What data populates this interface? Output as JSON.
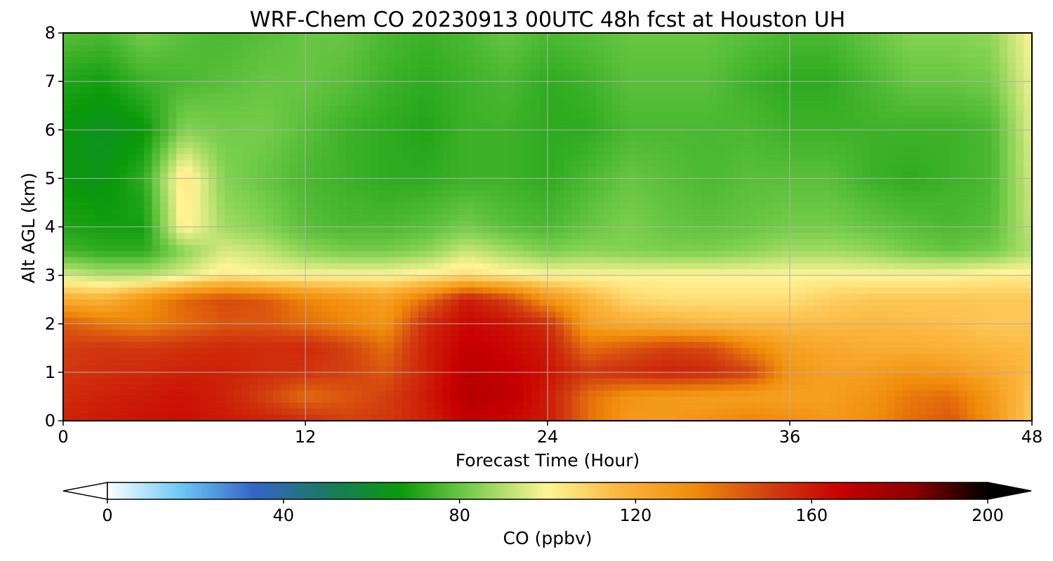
{
  "chart_data": {
    "type": "heatmap",
    "title": "WRF-Chem CO  20230913 00UTC 48h fcst at Houston UH",
    "xlabel": "Forecast Time (Hour)",
    "ylabel": "Alt AGL (km)",
    "xlim": [
      0,
      48
    ],
    "ylim": [
      0,
      8
    ],
    "x_ticks": [
      "0",
      "12",
      "24",
      "36",
      "48"
    ],
    "y_ticks": [
      "0",
      "1",
      "2",
      "3",
      "4",
      "5",
      "6",
      "7",
      "8"
    ],
    "grid": true,
    "colorbar": {
      "label": "CO  (ppbv)",
      "range": [
        0,
        200
      ],
      "ticks": [
        "0",
        "40",
        "80",
        "120",
        "160",
        "200"
      ],
      "extend": "both",
      "colors": [
        "#ffffff",
        "#6ac8f5",
        "#3563c8",
        "#1a7a60",
        "#0a9a0a",
        "#7ed050",
        "#fff596",
        "#fbb53c",
        "#f08c0a",
        "#d24010",
        "#c80000",
        "#8c0000",
        "#000000"
      ]
    },
    "hours": [
      0,
      2,
      4,
      6,
      8,
      10,
      12,
      14,
      16,
      18,
      20,
      22,
      24,
      26,
      28,
      30,
      32,
      34,
      36,
      38,
      40,
      42,
      44,
      46,
      48
    ],
    "altitudes_km": [
      0,
      0.5,
      1,
      1.5,
      2,
      2.5,
      3,
      3.5,
      4,
      5,
      6,
      7,
      8
    ],
    "values_ppbv": [
      [
        158,
        160,
        162,
        163,
        160,
        158,
        155,
        150,
        152,
        158,
        168,
        165,
        160,
        140,
        128,
        127,
        131,
        135,
        132,
        128,
        132,
        140,
        145,
        130,
        110
      ],
      [
        155,
        158,
        160,
        162,
        158,
        150,
        140,
        145,
        150,
        160,
        172,
        170,
        160,
        140,
        130,
        128,
        126,
        126,
        125,
        126,
        130,
        138,
        140,
        128,
        112
      ],
      [
        152,
        155,
        156,
        158,
        158,
        155,
        153,
        150,
        145,
        158,
        170,
        168,
        162,
        152,
        155,
        158,
        156,
        150,
        130,
        125,
        126,
        130,
        128,
        122,
        115
      ],
      [
        150,
        153,
        152,
        154,
        156,
        155,
        156,
        150,
        140,
        158,
        168,
        165,
        160,
        140,
        145,
        150,
        148,
        135,
        125,
        122,
        120,
        120,
        118,
        116,
        115
      ],
      [
        145,
        138,
        135,
        140,
        145,
        145,
        140,
        135,
        130,
        155,
        165,
        162,
        155,
        125,
        120,
        118,
        116,
        115,
        115,
        115,
        116,
        115,
        114,
        112,
        112
      ],
      [
        120,
        118,
        130,
        142,
        148,
        145,
        135,
        130,
        125,
        140,
        160,
        150,
        130,
        118,
        108,
        106,
        106,
        106,
        106,
        110,
        112,
        112,
        112,
        112,
        112
      ],
      [
        95,
        90,
        90,
        96,
        103,
        100,
        100,
        100,
        100,
        102,
        106,
        102,
        100,
        100,
        100,
        100,
        100,
        100,
        100,
        100,
        100,
        100,
        100,
        102,
        102
      ],
      [
        75,
        72,
        72,
        85,
        95,
        92,
        85,
        82,
        82,
        85,
        93,
        88,
        83,
        85,
        84,
        83,
        83,
        85,
        88,
        88,
        86,
        82,
        80,
        82,
        90
      ],
      [
        70,
        68,
        68,
        102,
        88,
        84,
        78,
        76,
        76,
        78,
        82,
        78,
        76,
        80,
        83,
        80,
        79,
        80,
        82,
        82,
        80,
        78,
        76,
        78,
        92
      ],
      [
        66,
        64,
        72,
        105,
        84,
        80,
        76,
        74,
        72,
        72,
        74,
        74,
        72,
        76,
        80,
        78,
        76,
        78,
        78,
        78,
        74,
        72,
        74,
        76,
        94
      ],
      [
        66,
        62,
        66,
        84,
        82,
        82,
        78,
        74,
        72,
        70,
        74,
        74,
        72,
        72,
        76,
        76,
        76,
        76,
        74,
        74,
        74,
        74,
        74,
        76,
        96
      ],
      [
        70,
        68,
        74,
        76,
        78,
        80,
        80,
        78,
        74,
        72,
        74,
        76,
        72,
        74,
        78,
        78,
        78,
        74,
        72,
        72,
        76,
        80,
        80,
        82,
        98
      ],
      [
        78,
        76,
        82,
        78,
        76,
        78,
        80,
        80,
        76,
        74,
        76,
        80,
        76,
        78,
        80,
        80,
        80,
        78,
        76,
        76,
        80,
        84,
        84,
        86,
        100
      ]
    ]
  }
}
